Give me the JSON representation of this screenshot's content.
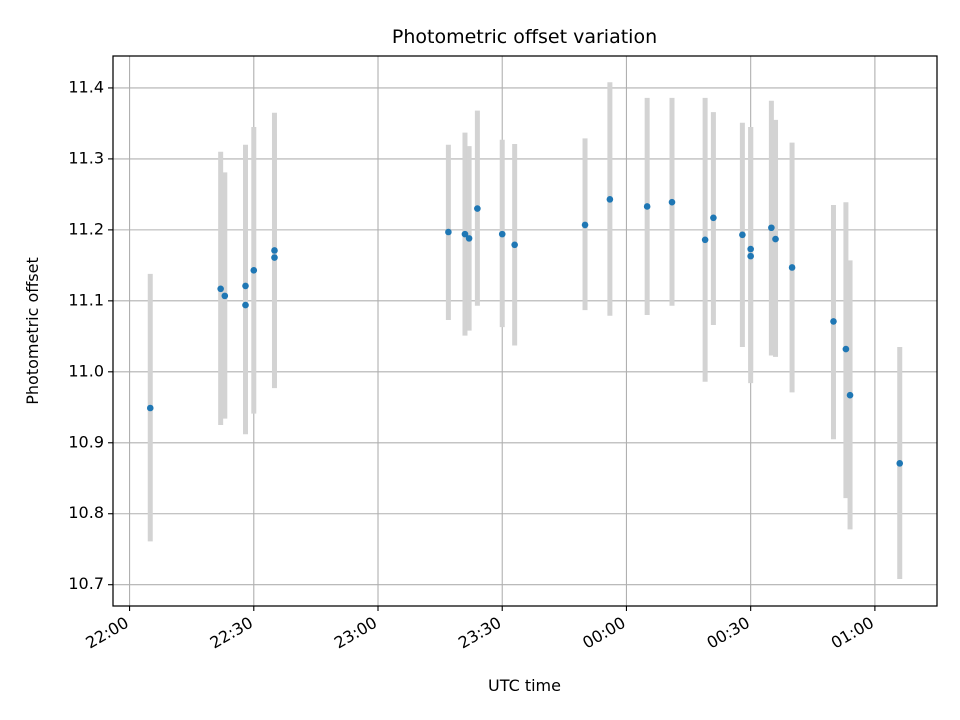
{
  "chart_data": {
    "type": "scatter",
    "title": "Photometric offset variation",
    "xlabel": "UTC time",
    "ylabel": "Photometric offset",
    "grid": true,
    "x_unit": "UTC time (HH:MM, wraps past midnight)",
    "xlim": [
      "21:56",
      "01:15"
    ],
    "ylim": [
      10.67,
      11.445
    ],
    "x_ticks": [
      "22:00",
      "22:30",
      "23:00",
      "23:30",
      "00:00",
      "00:30",
      "01:00"
    ],
    "y_ticks": [
      10.7,
      10.8,
      10.9,
      11.0,
      11.1,
      11.2,
      11.3,
      11.4
    ],
    "y_tick_labels": [
      "10.7",
      "10.8",
      "10.9",
      "11.0",
      "11.1",
      "11.2",
      "11.3",
      "11.4"
    ],
    "colors": {
      "points": "#1f77b4",
      "error_bars": "#d3d3d3",
      "grid": "#b0b0b0"
    },
    "series": [
      {
        "points": [
          {
            "x": "22:05",
            "y": 10.949,
            "ylo": 10.761,
            "yhi": 11.138
          },
          {
            "x": "22:22",
            "y": 11.117,
            "ylo": 10.925,
            "yhi": 11.31
          },
          {
            "x": "22:23",
            "y": 11.107,
            "ylo": 10.934,
            "yhi": 11.281
          },
          {
            "x": "22:28",
            "y": 11.121,
            "ylo": 10.922,
            "yhi": 11.32
          },
          {
            "x": "22:28",
            "y": 11.094,
            "ylo": 10.912,
            "yhi": 11.274
          },
          {
            "x": "22:30",
            "y": 11.143,
            "ylo": 10.941,
            "yhi": 11.345
          },
          {
            "x": "22:35",
            "y": 11.161,
            "ylo": 10.985,
            "yhi": 11.335
          },
          {
            "x": "22:35",
            "y": 11.171,
            "ylo": 10.977,
            "yhi": 11.365
          },
          {
            "x": "23:17",
            "y": 11.197,
            "ylo": 11.073,
            "yhi": 11.32
          },
          {
            "x": "23:21",
            "y": 11.194,
            "ylo": 11.051,
            "yhi": 11.337
          },
          {
            "x": "23:22",
            "y": 11.188,
            "ylo": 11.058,
            "yhi": 11.318
          },
          {
            "x": "23:24",
            "y": 11.23,
            "ylo": 11.093,
            "yhi": 11.368
          },
          {
            "x": "23:30",
            "y": 11.194,
            "ylo": 11.063,
            "yhi": 11.327
          },
          {
            "x": "23:33",
            "y": 11.179,
            "ylo": 11.037,
            "yhi": 11.321
          },
          {
            "x": "23:50",
            "y": 11.207,
            "ylo": 11.087,
            "yhi": 11.329
          },
          {
            "x": "23:56",
            "y": 11.243,
            "ylo": 11.079,
            "yhi": 11.408
          },
          {
            "x": "00:05",
            "y": 11.233,
            "ylo": 11.08,
            "yhi": 11.386
          },
          {
            "x": "00:11",
            "y": 11.239,
            "ylo": 11.093,
            "yhi": 11.386
          },
          {
            "x": "00:19",
            "y": 11.186,
            "ylo": 10.986,
            "yhi": 11.386
          },
          {
            "x": "00:21",
            "y": 11.217,
            "ylo": 11.066,
            "yhi": 11.366
          },
          {
            "x": "00:28",
            "y": 11.193,
            "ylo": 11.035,
            "yhi": 11.351
          },
          {
            "x": "00:30",
            "y": 11.173,
            "ylo": 11.002,
            "yhi": 11.345
          },
          {
            "x": "00:30",
            "y": 11.163,
            "ylo": 10.984,
            "yhi": 11.345
          },
          {
            "x": "00:35",
            "y": 11.203,
            "ylo": 11.023,
            "yhi": 11.382
          },
          {
            "x": "00:36",
            "y": 11.187,
            "ylo": 11.021,
            "yhi": 11.355
          },
          {
            "x": "00:40",
            "y": 11.147,
            "ylo": 10.971,
            "yhi": 11.323
          },
          {
            "x": "00:50",
            "y": 11.071,
            "ylo": 10.905,
            "yhi": 11.235
          },
          {
            "x": "00:53",
            "y": 11.032,
            "ylo": 10.822,
            "yhi": 11.239
          },
          {
            "x": "00:54",
            "y": 10.967,
            "ylo": 10.778,
            "yhi": 11.157
          },
          {
            "x": "01:06",
            "y": 10.871,
            "ylo": 10.708,
            "yhi": 11.035
          }
        ]
      }
    ]
  }
}
